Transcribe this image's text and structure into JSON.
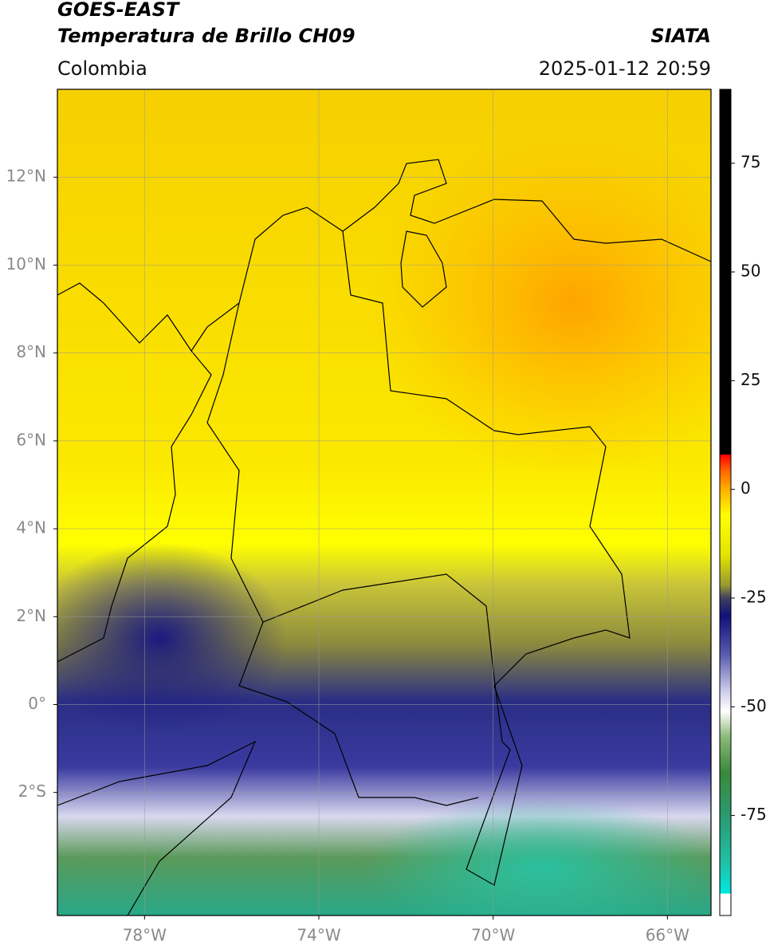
{
  "header": {
    "title": "GOES-EAST",
    "subtitle": "Temperatura de Brillo CH09",
    "source": "SIATA",
    "region": "Colombia",
    "timestamp": "2025-01-12 20:59"
  },
  "map": {
    "xlim": [
      -80,
      -65
    ],
    "ylim": [
      -4.8,
      14
    ],
    "xticks": [
      {
        "value": -78,
        "label": "78°W"
      },
      {
        "value": -74,
        "label": "74°W"
      },
      {
        "value": -70,
        "label": "70°W"
      },
      {
        "value": -66,
        "label": "66°W"
      }
    ],
    "yticks": [
      {
        "value": 12,
        "label": "12°N"
      },
      {
        "value": 10,
        "label": "10°N"
      },
      {
        "value": 8,
        "label": "8°N"
      },
      {
        "value": 6,
        "label": "6°N"
      },
      {
        "value": 4,
        "label": "4°N"
      },
      {
        "value": 2,
        "label": "2°N"
      },
      {
        "value": 0,
        "label": "0°"
      },
      {
        "value": -2,
        "label": "2°S"
      }
    ],
    "grid": true
  },
  "colorbar": {
    "lim": [
      -98,
      92
    ],
    "ticks": [
      75,
      50,
      25,
      0,
      -25,
      -50,
      -75
    ],
    "stops": [
      {
        "value": 92,
        "color": "#000000"
      },
      {
        "value": 8,
        "color": "#000000"
      },
      {
        "value": 8,
        "color": "#ff0000"
      },
      {
        "value": 4,
        "color": "#ff6a00"
      },
      {
        "value": 0,
        "color": "#ffb000"
      },
      {
        "value": -6,
        "color": "#ffff00"
      },
      {
        "value": -15,
        "color": "#e4e400"
      },
      {
        "value": -22,
        "color": "#9a9a30"
      },
      {
        "value": -25,
        "color": "#404060"
      },
      {
        "value": -29,
        "color": "#10107a"
      },
      {
        "value": -38,
        "color": "#5a5ab0"
      },
      {
        "value": -46,
        "color": "#c8c8e8"
      },
      {
        "value": -51,
        "color": "#ffffff"
      },
      {
        "value": -57,
        "color": "#8ab878"
      },
      {
        "value": -65,
        "color": "#3a8a3a"
      },
      {
        "value": -75,
        "color": "#2a9a70"
      },
      {
        "value": -86,
        "color": "#20c0a8"
      },
      {
        "value": -93,
        "color": "#00e8e0"
      },
      {
        "value": -93,
        "color": "#ffffff"
      },
      {
        "value": -98,
        "color": "#ffffff"
      }
    ]
  }
}
